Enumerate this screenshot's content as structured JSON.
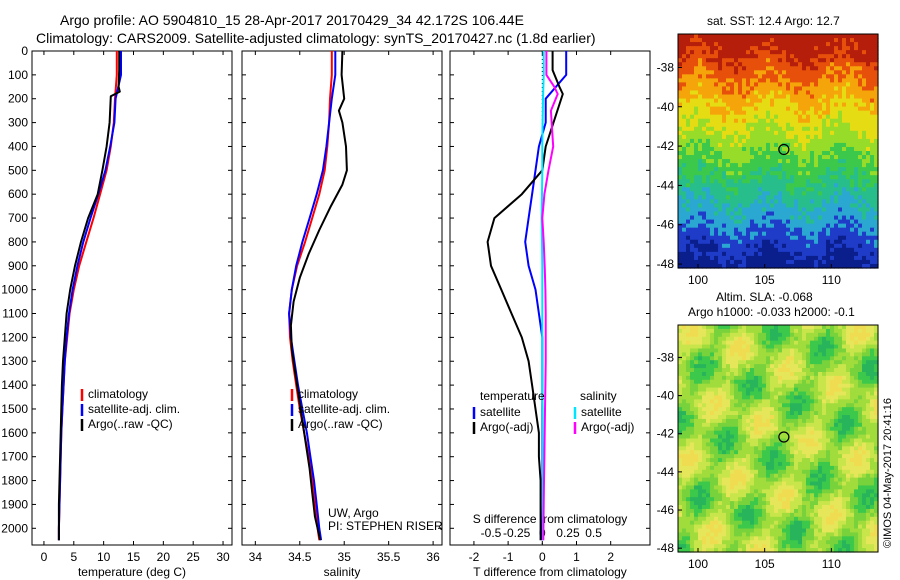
{
  "header": {
    "title_line1": "Argo profile: AO 5904810_15 28-Apr-2017 20170429_34 42.172S 106.44E",
    "title_line2": "Climatology: CARS2009. Satellite-adjusted climatology: synTS_20170427.nc (1.8d earlier)"
  },
  "map_top": {
    "title": "sat. SST: 12.4  Argo: 12.7"
  },
  "map_bottom": {
    "title_line1": "Altim. SLA: -0.068",
    "title_line2": "Argo h1000: -0.033 h2000: -0.1"
  },
  "credit": "©IMOS 04-May-2017 20:41:16",
  "colors": {
    "climatology": "#ff0000",
    "satellite": "#0000ff",
    "argo": "#000000",
    "sat_salinity": "#00e5ff",
    "argo_salinity": "#ff00ff"
  },
  "chart_data": [
    {
      "type": "line",
      "xlabel": "temperature (deg C)",
      "xticks": [
        0,
        5,
        10,
        15,
        20,
        25,
        30
      ],
      "xlim": [
        -2,
        31.5
      ],
      "ylim": [
        0,
        2070
      ],
      "yticks": [
        0,
        100,
        200,
        300,
        400,
        500,
        600,
        700,
        800,
        900,
        1000,
        1100,
        1200,
        1300,
        1400,
        1500,
        1600,
        1700,
        1800,
        1900,
        2000
      ],
      "legend": [
        "climatology",
        "satellite-adj. clim.",
        "Argo(..raw -QC)"
      ],
      "series": [
        {
          "name": "climatology",
          "color": "#ff0000",
          "x": [
            12.2,
            12.2,
            11.9,
            11.7,
            11.2,
            10.5,
            9.4,
            8.3,
            7.1,
            5.9,
            5.0,
            4.3,
            3.9,
            3.5,
            3.3,
            3.1,
            2.9,
            2.8,
            2.7,
            2.6,
            2.5,
            2.5
          ],
          "y": [
            0,
            100,
            200,
            300,
            400,
            500,
            600,
            700,
            800,
            900,
            1000,
            1100,
            1200,
            1300,
            1400,
            1500,
            1600,
            1700,
            1800,
            1900,
            2000,
            2050
          ]
        },
        {
          "name": "satellite-adj. clim.",
          "color": "#0000ff",
          "x": [
            12.9,
            12.9,
            12.0,
            11.8,
            11.1,
            10.3,
            9.1,
            7.8,
            6.6,
            5.6,
            4.8,
            4.2,
            3.8,
            3.5,
            3.3,
            3.1,
            2.9,
            2.8,
            2.7,
            2.6,
            2.5,
            2.5
          ],
          "y": [
            0,
            100,
            200,
            300,
            400,
            500,
            600,
            700,
            800,
            900,
            1000,
            1100,
            1200,
            1300,
            1400,
            1500,
            1600,
            1700,
            1800,
            1900,
            2000,
            2050
          ]
        },
        {
          "name": "Argo(..raw -QC)",
          "color": "#000000",
          "x": [
            12.6,
            12.6,
            12.5,
            12.7,
            11.2,
            11.0,
            10.5,
            9.8,
            9.0,
            7.4,
            6.2,
            5.2,
            4.4,
            3.8,
            3.5,
            3.2,
            3.0,
            2.9,
            2.8,
            2.7,
            2.6,
            2.5,
            2.5
          ],
          "y": [
            0,
            80,
            150,
            170,
            190,
            300,
            400,
            500,
            600,
            700,
            800,
            900,
            1000,
            1100,
            1200,
            1300,
            1400,
            1500,
            1600,
            1700,
            1800,
            1900,
            2050
          ]
        }
      ]
    },
    {
      "type": "line",
      "xlabel": "salinity",
      "xticks": [
        34,
        34.5,
        35,
        35.5,
        36
      ],
      "xlim": [
        33.85,
        36.1
      ],
      "ylim": [
        0,
        2070
      ],
      "legend": [
        "climatology",
        "satellite-adj. clim.",
        "Argo(..raw -QC)"
      ],
      "annotations": [
        "UW, Argo",
        "PI: STEPHEN RISER"
      ],
      "series": [
        {
          "name": "climatology",
          "color": "#ff0000",
          "x": [
            34.86,
            34.86,
            34.84,
            34.83,
            34.81,
            34.78,
            34.72,
            34.64,
            34.56,
            34.47,
            34.41,
            34.38,
            34.39,
            34.42,
            34.46,
            34.5,
            34.55,
            34.6,
            34.64,
            34.67,
            34.7,
            34.72
          ],
          "y": [
            0,
            100,
            200,
            300,
            400,
            500,
            600,
            700,
            800,
            900,
            1000,
            1100,
            1200,
            1300,
            1400,
            1500,
            1600,
            1700,
            1800,
            1900,
            2000,
            2050
          ]
        },
        {
          "name": "satellite-adj. clim.",
          "color": "#0000ff",
          "x": [
            34.9,
            34.9,
            34.86,
            34.83,
            34.8,
            34.76,
            34.69,
            34.61,
            34.53,
            34.46,
            34.41,
            34.38,
            34.4,
            34.44,
            34.48,
            34.53,
            34.58,
            34.62,
            34.66,
            34.69,
            34.72,
            34.74
          ],
          "y": [
            0,
            100,
            200,
            300,
            400,
            500,
            600,
            700,
            800,
            900,
            1000,
            1100,
            1200,
            1300,
            1400,
            1500,
            1600,
            1700,
            1800,
            1900,
            2000,
            2050
          ]
        },
        {
          "name": "Argo(..raw -QC)",
          "color": "#000000",
          "x": [
            34.98,
            34.97,
            35.0,
            34.94,
            34.98,
            35.02,
            35.03,
            34.98,
            34.85,
            34.72,
            34.6,
            34.5,
            34.43,
            34.4,
            34.41,
            34.45,
            34.49,
            34.53,
            34.57,
            34.61,
            34.64,
            34.67,
            34.7,
            34.73
          ],
          "y": [
            0,
            100,
            200,
            250,
            300,
            400,
            500,
            560,
            650,
            750,
            850,
            950,
            1050,
            1150,
            1250,
            1350,
            1450,
            1550,
            1650,
            1750,
            1850,
            1950,
            2000,
            2050
          ]
        }
      ]
    },
    {
      "type": "line",
      "xlabel": "T difference from climatology",
      "xticks": [
        -2,
        -1,
        0,
        1,
        2
      ],
      "xlim": [
        -2.7,
        3.15
      ],
      "ylim": [
        0,
        2070
      ],
      "top_axis_label": "S difference from climatology",
      "top_ticks": [
        "-0.5",
        "-0.25",
        "0",
        "0.25",
        "0.5"
      ],
      "legend_headers": [
        "temperature",
        "salinity"
      ],
      "legend": [
        "satellite",
        "Argo(-adj)",
        "satellite",
        "Argo(-adj)"
      ],
      "series": [
        {
          "name": "satellite",
          "color": "#0000ff",
          "x": [
            0.7,
            0.7,
            0.1,
            0.1,
            -0.1,
            -0.2,
            -0.3,
            -0.4,
            -0.5,
            -0.4,
            -0.2,
            -0.1,
            0.0,
            0.0,
            0.0,
            0.0,
            0.0,
            0.0,
            0.0,
            0.0,
            0.0,
            0.0
          ],
          "y": [
            0,
            100,
            200,
            300,
            400,
            500,
            600,
            700,
            800,
            900,
            1000,
            1100,
            1200,
            1300,
            1400,
            1500,
            1600,
            1700,
            1800,
            1900,
            2000,
            2050
          ]
        },
        {
          "name": "Argo(-adj)",
          "color": "#000000",
          "x": [
            0.3,
            0.3,
            0.5,
            0.6,
            0.1,
            0.0,
            -0.6,
            -1.4,
            -1.6,
            -1.5,
            -1.2,
            -0.9,
            -0.6,
            -0.4,
            -0.3,
            -0.2,
            -0.1,
            -0.1,
            -0.05,
            -0.05,
            -0.05,
            -0.05
          ],
          "y": [
            0,
            80,
            150,
            180,
            400,
            500,
            600,
            700,
            800,
            900,
            1000,
            1100,
            1200,
            1300,
            1400,
            1500,
            1600,
            1700,
            1800,
            1900,
            2000,
            2050
          ]
        },
        {
          "name": "satellite",
          "color": "#00e5ff",
          "x": [
            0.04,
            0.04,
            0.02,
            0.01,
            0.0,
            0.0,
            -0.01,
            -0.02,
            -0.01,
            0.0,
            0.0,
            0.0,
            0.0,
            0.0,
            0.0,
            0.01,
            0.01,
            0.01,
            0.01,
            0.01,
            0.02,
            0.02
          ],
          "y": [
            0,
            100,
            200,
            300,
            400,
            500,
            600,
            700,
            800,
            900,
            1000,
            1100,
            1200,
            1300,
            1400,
            1500,
            1600,
            1700,
            1800,
            1900,
            2000,
            2050
          ]
        },
        {
          "name": "Argo(-adj)",
          "color": "#ff00ff",
          "x": [
            0.12,
            0.12,
            0.35,
            0.45,
            0.25,
            0.32,
            0.18,
            0.06,
            0.0,
            0.04,
            0.07,
            0.09,
            0.1,
            0.1,
            0.1,
            0.09,
            0.08,
            0.07,
            0.06,
            0.05,
            0.04,
            0.03
          ],
          "y": [
            0,
            100,
            150,
            180,
            250,
            400,
            500,
            600,
            700,
            800,
            900,
            1000,
            1100,
            1200,
            1300,
            1400,
            1500,
            1600,
            1700,
            1800,
            1900,
            2050
          ]
        }
      ]
    },
    {
      "type": "heatmap",
      "title": "sat. SST: 12.4  Argo: 12.7",
      "xticks": [
        100,
        105,
        110
      ],
      "yticks": [
        -38,
        -40,
        -42,
        -44,
        -46,
        -48
      ],
      "xlim": [
        98.5,
        113.5
      ],
      "ylim": [
        -48.2,
        -36.3
      ],
      "marker": {
        "lon": 106.44,
        "lat": -42.172
      }
    },
    {
      "type": "heatmap",
      "title": "Altim. SLA: -0.068",
      "subtitle": "Argo h1000: -0.033 h2000: -0.1",
      "xticks": [
        100,
        105,
        110
      ],
      "yticks": [
        -38,
        -40,
        -42,
        -44,
        -46,
        -48
      ],
      "xlim": [
        98.5,
        113.5
      ],
      "ylim": [
        -48.2,
        -36.3
      ],
      "marker": {
        "lon": 106.44,
        "lat": -42.172
      }
    }
  ]
}
